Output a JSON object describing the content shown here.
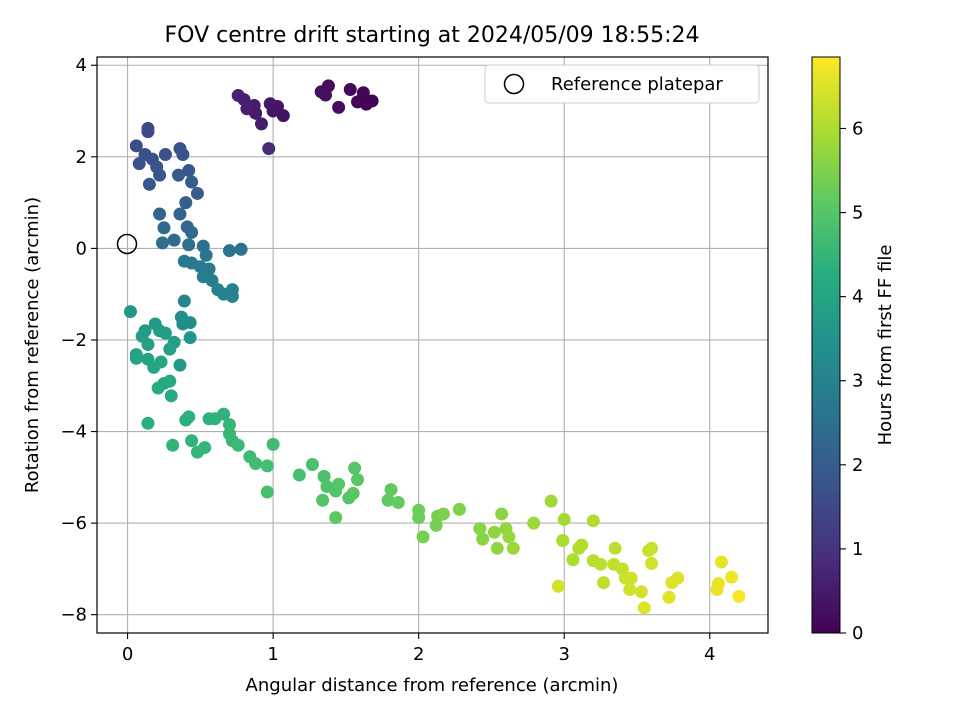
{
  "chart_data": {
    "type": "scatter",
    "title": "FOV centre drift starting at 2024/05/09 18:55:24",
    "xlabel": "Angular distance from reference (arcmin)",
    "ylabel": "Rotation from reference (arcmin)",
    "xlim": [
      -0.21,
      4.4
    ],
    "ylim": [
      -8.4,
      4.18
    ],
    "xticks": [
      0,
      1,
      2,
      3,
      4
    ],
    "yticks": [
      -8,
      -6,
      -4,
      -2,
      0,
      2,
      4
    ],
    "grid": true,
    "legend": {
      "placement": "top-right",
      "entries": [
        "Reference platepar"
      ]
    },
    "colorbar": {
      "label": "Hours from first FF file",
      "range": [
        0,
        6.85
      ],
      "ticks": [
        0,
        1,
        2,
        3,
        4,
        5,
        6
      ],
      "colormap": "viridis"
    },
    "reference_point": {
      "x": 0,
      "y": 0
    },
    "points": [
      [
        0.76,
        3.34,
        0.65
      ],
      [
        0.8,
        3.25,
        0.6
      ],
      [
        0.87,
        3.12,
        0.55
      ],
      [
        0.82,
        3.05,
        0.6
      ],
      [
        0.88,
        2.95,
        0.5
      ],
      [
        0.92,
        2.72,
        0.55
      ],
      [
        0.98,
        3.16,
        0.45
      ],
      [
        1.0,
        3.0,
        0.4
      ],
      [
        1.03,
        3.1,
        0.4
      ],
      [
        1.07,
        2.9,
        0.35
      ],
      [
        1.33,
        3.42,
        0.3
      ],
      [
        1.38,
        3.55,
        0.25
      ],
      [
        1.36,
        3.35,
        0.25
      ],
      [
        1.45,
        3.08,
        0.2
      ],
      [
        1.53,
        3.47,
        0.15
      ],
      [
        1.58,
        3.2,
        0.1
      ],
      [
        1.62,
        3.4,
        0.1
      ],
      [
        1.64,
        3.15,
        0.05
      ],
      [
        1.68,
        3.22,
        0.03
      ],
      [
        0.97,
        2.18,
        0.8
      ],
      [
        0.06,
        2.24,
        1.6
      ],
      [
        0.14,
        2.62,
        1.5
      ],
      [
        0.14,
        2.55,
        1.5
      ],
      [
        0.08,
        1.85,
        1.7
      ],
      [
        0.12,
        2.05,
        1.65
      ],
      [
        0.17,
        1.95,
        1.7
      ],
      [
        0.2,
        1.78,
        1.8
      ],
      [
        0.26,
        2.05,
        1.7
      ],
      [
        0.22,
        1.6,
        1.8
      ],
      [
        0.15,
        1.4,
        1.9
      ],
      [
        0.36,
        2.18,
        1.7
      ],
      [
        0.38,
        2.05,
        1.75
      ],
      [
        0.42,
        1.7,
        1.85
      ],
      [
        0.35,
        1.6,
        1.9
      ],
      [
        0.44,
        1.45,
        1.95
      ],
      [
        0.48,
        1.2,
        2.0
      ],
      [
        0.4,
        1.0,
        2.1
      ],
      [
        0.36,
        0.75,
        2.2
      ],
      [
        0.22,
        0.75,
        2.2
      ],
      [
        0.25,
        0.45,
        2.3
      ],
      [
        0.41,
        0.47,
        2.3
      ],
      [
        0.44,
        0.35,
        2.35
      ],
      [
        0.32,
        0.18,
        2.4
      ],
      [
        0.24,
        0.12,
        2.45
      ],
      [
        0.42,
        0.08,
        2.45
      ],
      [
        0.52,
        0.05,
        2.5
      ],
      [
        0.54,
        -0.15,
        2.6
      ],
      [
        0.39,
        -0.28,
        2.7
      ],
      [
        0.44,
        -0.32,
        2.7
      ],
      [
        0.5,
        -0.4,
        2.8
      ],
      [
        0.56,
        -0.45,
        2.8
      ],
      [
        0.52,
        -0.62,
        2.9
      ],
      [
        0.58,
        -0.7,
        2.9
      ],
      [
        0.62,
        -0.9,
        3.0
      ],
      [
        0.66,
        -1.0,
        3.0
      ],
      [
        0.7,
        -0.05,
        2.55
      ],
      [
        0.78,
        -0.02,
        2.55
      ],
      [
        0.72,
        -0.9,
        3.0
      ],
      [
        0.72,
        -1.05,
        3.05
      ],
      [
        0.39,
        -1.15,
        3.1
      ],
      [
        0.37,
        -1.5,
        3.3
      ],
      [
        0.38,
        -1.65,
        3.35
      ],
      [
        0.43,
        -1.62,
        3.35
      ],
      [
        0.43,
        -1.95,
        3.5
      ],
      [
        0.36,
        -2.55,
        3.7
      ],
      [
        0.02,
        -1.38,
        3.6
      ],
      [
        0.12,
        -1.8,
        3.7
      ],
      [
        0.1,
        -1.92,
        3.8
      ],
      [
        0.19,
        -1.65,
        3.7
      ],
      [
        0.22,
        -1.8,
        3.75
      ],
      [
        0.26,
        -1.85,
        3.8
      ],
      [
        0.32,
        -2.05,
        3.85
      ],
      [
        0.29,
        -2.2,
        3.9
      ],
      [
        0.14,
        -2.1,
        3.85
      ],
      [
        0.06,
        -2.32,
        3.9
      ],
      [
        0.06,
        -2.4,
        3.95
      ],
      [
        0.14,
        -2.42,
        3.95
      ],
      [
        0.18,
        -2.6,
        4.0
      ],
      [
        0.23,
        -2.48,
        4.0
      ],
      [
        0.25,
        -2.95,
        4.1
      ],
      [
        0.29,
        -2.9,
        4.15
      ],
      [
        0.21,
        -3.05,
        4.15
      ],
      [
        0.3,
        -3.22,
        4.2
      ],
      [
        0.14,
        -3.82,
        4.3
      ],
      [
        0.4,
        -3.75,
        4.35
      ],
      [
        0.42,
        -3.68,
        4.35
      ],
      [
        0.31,
        -4.3,
        4.45
      ],
      [
        0.44,
        -4.2,
        4.45
      ],
      [
        0.48,
        -4.45,
        4.5
      ],
      [
        0.53,
        -4.35,
        4.5
      ],
      [
        0.56,
        -3.72,
        4.4
      ],
      [
        0.6,
        -3.72,
        4.4
      ],
      [
        0.66,
        -3.62,
        4.4
      ],
      [
        0.7,
        -3.85,
        4.5
      ],
      [
        0.7,
        -4.05,
        4.55
      ],
      [
        0.72,
        -4.2,
        4.55
      ],
      [
        0.76,
        -4.3,
        4.6
      ],
      [
        0.84,
        -4.55,
        4.65
      ],
      [
        0.88,
        -4.7,
        4.7
      ],
      [
        0.96,
        -4.75,
        4.75
      ],
      [
        1.0,
        -4.28,
        4.7
      ],
      [
        0.96,
        -5.32,
        4.8
      ],
      [
        1.18,
        -4.95,
        4.8
      ],
      [
        1.27,
        -4.72,
        4.85
      ],
      [
        1.35,
        -4.98,
        4.85
      ],
      [
        1.37,
        -5.2,
        4.9
      ],
      [
        1.34,
        -5.5,
        4.95
      ],
      [
        1.43,
        -5.3,
        4.95
      ],
      [
        1.45,
        -5.15,
        5.0
      ],
      [
        1.52,
        -5.45,
        5.0
      ],
      [
        1.55,
        -5.35,
        5.05
      ],
      [
        1.56,
        -4.8,
        5.0
      ],
      [
        1.58,
        -5.05,
        5.05
      ],
      [
        1.43,
        -5.88,
        5.1
      ],
      [
        1.81,
        -5.27,
        5.15
      ],
      [
        1.79,
        -5.5,
        5.15
      ],
      [
        1.86,
        -5.55,
        5.2
      ],
      [
        2.0,
        -5.72,
        5.3
      ],
      [
        2.0,
        -5.88,
        5.3
      ],
      [
        2.03,
        -6.3,
        5.4
      ],
      [
        2.12,
        -6.05,
        5.4
      ],
      [
        2.13,
        -5.85,
        5.4
      ],
      [
        2.17,
        -5.8,
        5.45
      ],
      [
        2.28,
        -5.7,
        5.5
      ],
      [
        2.42,
        -6.12,
        5.6
      ],
      [
        2.44,
        -6.35,
        5.6
      ],
      [
        2.52,
        -6.2,
        5.65
      ],
      [
        2.54,
        -6.55,
        5.7
      ],
      [
        2.57,
        -5.8,
        5.65
      ],
      [
        2.6,
        -6.12,
        5.7
      ],
      [
        2.62,
        -6.3,
        5.75
      ],
      [
        2.65,
        -6.55,
        5.8
      ],
      [
        2.79,
        -6.0,
        5.8
      ],
      [
        2.91,
        -5.52,
        5.85
      ],
      [
        2.99,
        -6.38,
        5.95
      ],
      [
        3.0,
        -5.92,
        5.9
      ],
      [
        3.06,
        -6.8,
        6.0
      ],
      [
        3.1,
        -6.55,
        6.05
      ],
      [
        3.12,
        -6.48,
        6.05
      ],
      [
        3.2,
        -6.82,
        6.1
      ],
      [
        3.2,
        -5.95,
        6.0
      ],
      [
        3.25,
        -6.9,
        6.15
      ],
      [
        3.27,
        -7.3,
        6.2
      ],
      [
        3.34,
        -6.9,
        6.2
      ],
      [
        3.35,
        -6.55,
        6.15
      ],
      [
        3.4,
        -7.0,
        6.25
      ],
      [
        3.42,
        -7.2,
        6.3
      ],
      [
        3.46,
        -7.2,
        6.35
      ],
      [
        3.45,
        -7.45,
        6.35
      ],
      [
        3.53,
        -7.5,
        6.4
      ],
      [
        3.55,
        -7.85,
        6.5
      ],
      [
        3.58,
        -6.6,
        6.3
      ],
      [
        3.6,
        -6.55,
        6.3
      ],
      [
        3.6,
        -6.88,
        6.35
      ],
      [
        3.72,
        -7.62,
        6.55
      ],
      [
        3.74,
        -7.3,
        6.5
      ],
      [
        3.78,
        -7.2,
        6.5
      ],
      [
        4.05,
        -7.45,
        6.65
      ],
      [
        4.06,
        -7.32,
        6.65
      ],
      [
        4.08,
        -6.85,
        6.6
      ],
      [
        4.15,
        -7.18,
        6.7
      ],
      [
        4.2,
        -7.6,
        6.8
      ],
      [
        2.96,
        -7.38,
        6.4
      ]
    ]
  }
}
